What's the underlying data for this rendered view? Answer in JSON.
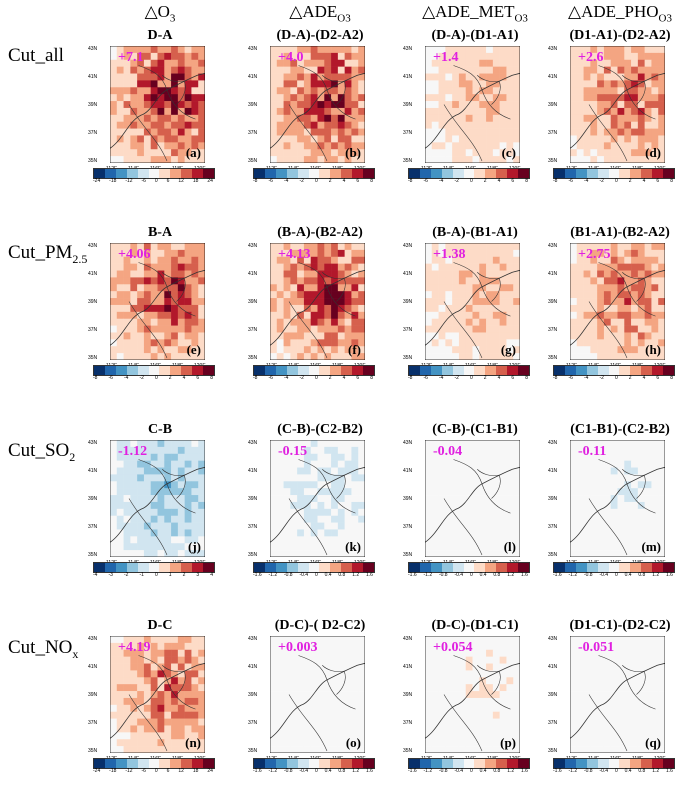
{
  "columns": [
    {
      "main": "△O",
      "sub": "3"
    },
    {
      "main": "△ADE",
      "sub": "O3"
    },
    {
      "main": "△ADE_MET",
      "sub": "O3"
    },
    {
      "main": "△ADE_PHO",
      "sub": "O3"
    }
  ],
  "rows": [
    {
      "main": "Cut_all",
      "sub": ""
    },
    {
      "main": "Cut_PM",
      "sub": "2.5"
    },
    {
      "main": "Cut_SO",
      "sub": "2"
    },
    {
      "main": "Cut_NO",
      "sub": "x"
    }
  ],
  "axes": {
    "x_ticks": [
      "112E",
      "114E",
      "116E",
      "118E",
      "120E"
    ],
    "y_ticks": [
      "43N",
      "41N",
      "39N",
      "37N",
      "35N"
    ]
  },
  "colorbars": {
    "all_o3": [
      "-24",
      "-18",
      "-12",
      "-6",
      "0",
      "6",
      "12",
      "18",
      "24"
    ],
    "all_ade": [
      "-8",
      "-6",
      "-4",
      "-2",
      "0",
      "2",
      "4",
      "6",
      "8"
    ],
    "so2_o3": [
      "-4",
      "-3",
      "-2",
      "-1",
      "0",
      "1",
      "2",
      "3",
      "4"
    ],
    "fine": [
      "-1.6",
      "-1.2",
      "-0.8",
      "-0.4",
      "0",
      "0.4",
      "0.8",
      "1.2",
      "1.6"
    ]
  },
  "palette": [
    "#08306b",
    "#2166ac",
    "#4393c3",
    "#92c5de",
    "#d1e5f0",
    "#f7f7f7",
    "#fddbc7",
    "#f4a582",
    "#d6604d",
    "#b2182b",
    "#67001f"
  ],
  "panels": [
    {
      "title": "D-A",
      "value": "+7.1",
      "letter": "(a)",
      "cbar": "all_o3",
      "level": 0.85
    },
    {
      "title": "(D-A)-(D2-A2)",
      "value": "+4.0",
      "letter": "(b)",
      "cbar": "all_ade",
      "level": 0.8
    },
    {
      "title": "(D-A)-(D1-A1)",
      "value": "+1.4",
      "letter": "(c)",
      "cbar": "all_ade",
      "level": 0.35
    },
    {
      "title": "(D1-A1)-(D2-A2)",
      "value": "+2.6",
      "letter": "(d)",
      "cbar": "all_ade",
      "level": 0.6
    },
    {
      "title": "B-A",
      "value": "+4.06",
      "letter": "(e)",
      "cbar": "all_ade",
      "level": 0.75
    },
    {
      "title": "(B-A)-(B2-A2)",
      "value": "+4.13",
      "letter": "(f)",
      "cbar": "all_ade",
      "level": 0.8
    },
    {
      "title": "(B-A)-(B1-A1)",
      "value": "+1.38",
      "letter": "(g)",
      "cbar": "all_ade",
      "level": 0.35
    },
    {
      "title": "(B1-A1)-(B2-A2)",
      "value": "+2.75",
      "letter": "(h)",
      "cbar": "all_ade",
      "level": 0.6
    },
    {
      "title": "C-B",
      "value": "-1.12",
      "letter": "(j)",
      "cbar": "so2_o3",
      "level": -0.4
    },
    {
      "title": "(C-B)-(C2-B2)",
      "value": "-0.15",
      "letter": "(k)",
      "cbar": "fine",
      "level": -0.15
    },
    {
      "title": "(C-B)-(C1-B1)",
      "value": "-0.04",
      "letter": "(l)",
      "cbar": "fine",
      "level": -0.05
    },
    {
      "title": "(C1-B1)-(C2-B2)",
      "value": "-0.11",
      "letter": "(m)",
      "cbar": "fine",
      "level": -0.1
    },
    {
      "title": "D-C",
      "value": "+4.19",
      "letter": "(n)",
      "cbar": "all_o3",
      "level": 0.6
    },
    {
      "title": "(D-C)-( D2-C2)",
      "value": "+0.003",
      "letter": "(o)",
      "cbar": "fine",
      "level": 0.05
    },
    {
      "title": "(D-C)-(D1-C1)",
      "value": "+0.054",
      "letter": "(p)",
      "cbar": "fine",
      "level": 0.1
    },
    {
      "title": "(D1-C1)-(D2-C2)",
      "value": "-0.051",
      "letter": "(q)",
      "cbar": "fine",
      "level": -0.05
    }
  ]
}
